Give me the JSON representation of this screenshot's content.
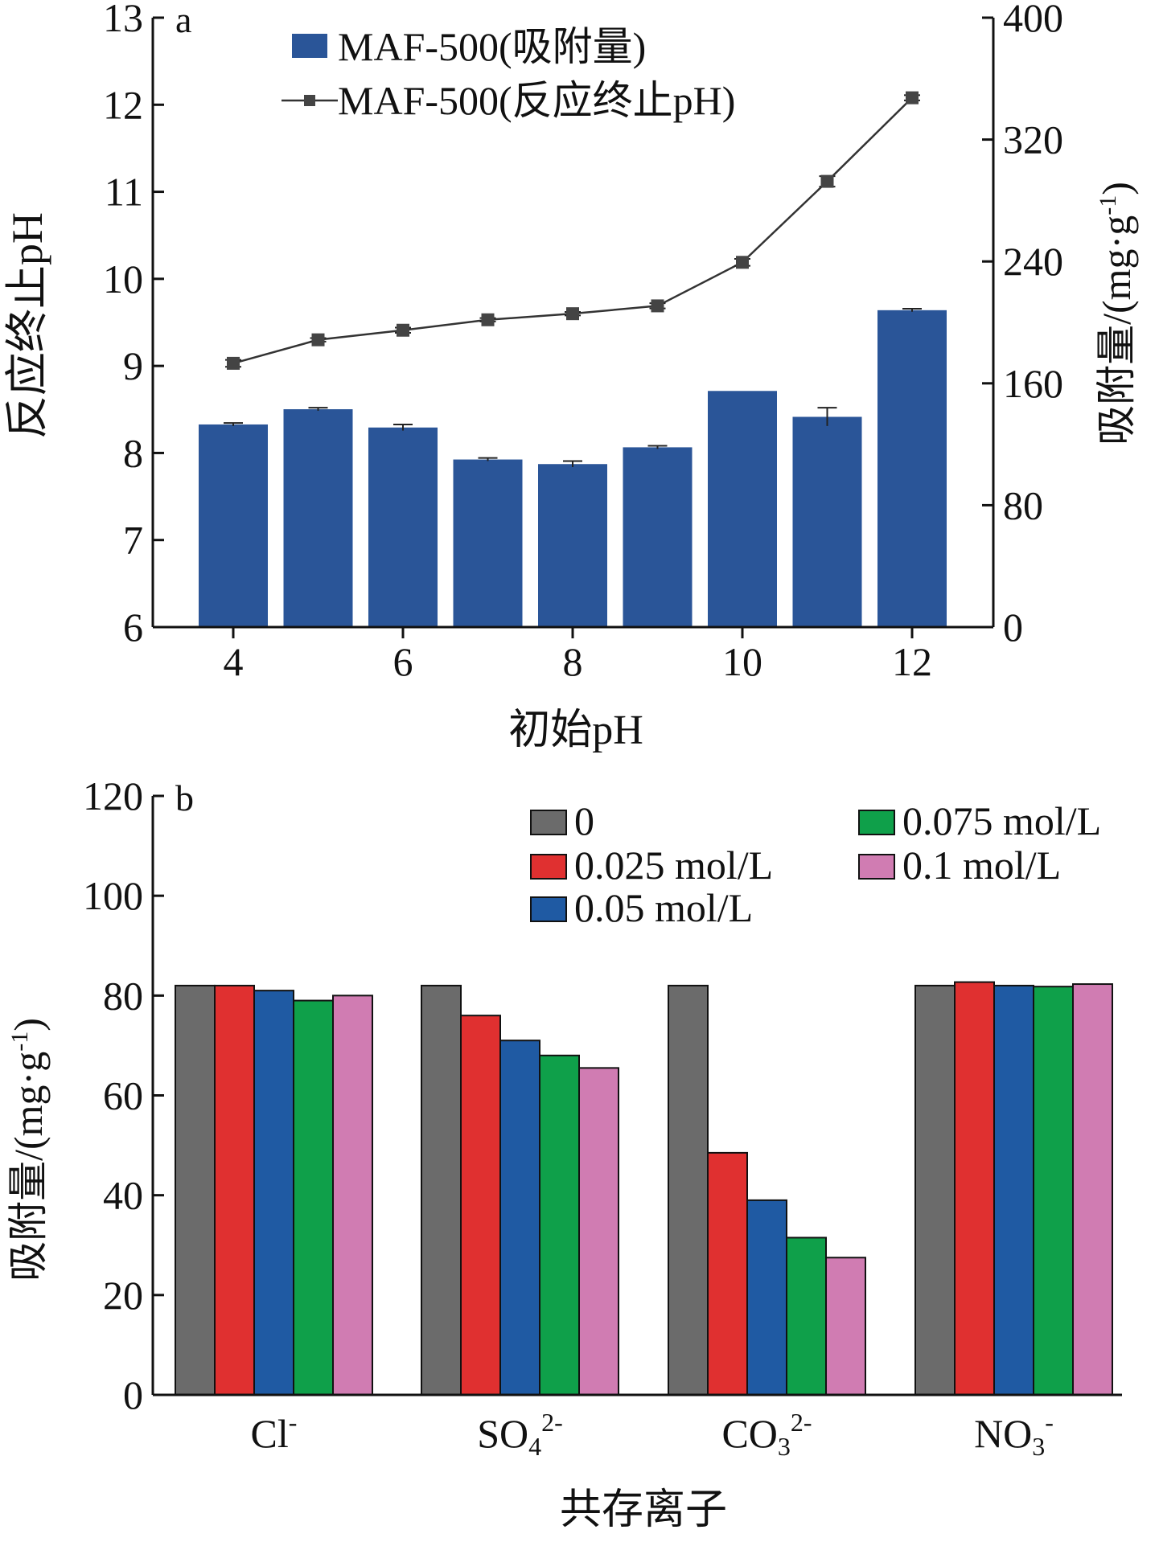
{
  "chart_data": [
    {
      "panel_label": "a",
      "type": "bar",
      "xlabel": "初始pH",
      "ylabel": "反应终止pH",
      "ylabel_right": "吸附量/(mg·g",
      "ylabel_right_sup": "-1",
      "ylabel_right_close": ")",
      "x": [
        4,
        5,
        6,
        7,
        8,
        9,
        10,
        11,
        12
      ],
      "xticks": [
        "4",
        "6",
        "8",
        "10",
        "12"
      ],
      "xtick_values": [
        4,
        6,
        8,
        10,
        12
      ],
      "ylim": [
        6,
        13
      ],
      "yticks": [
        "6",
        "7",
        "8",
        "9",
        "10",
        "11",
        "12",
        "13"
      ],
      "ylim_right": [
        0,
        400
      ],
      "yticks_right": [
        "0",
        "80",
        "160",
        "240",
        "320",
        "400"
      ],
      "bar_series": {
        "name": "MAF-500(吸附量)",
        "axis": "right",
        "color": "#2a5598",
        "values": [
          133,
          143,
          131,
          110,
          107,
          118,
          155,
          138,
          208
        ],
        "errors": [
          1,
          1,
          2,
          1,
          2,
          1,
          0,
          6,
          1
        ]
      },
      "line_series": {
        "name": "MAF-500(反应终止pH)",
        "axis": "left",
        "color": "#333333",
        "values": [
          9.03,
          9.3,
          9.41,
          9.53,
          9.6,
          9.69,
          10.19,
          11.12,
          12.08
        ],
        "errors": [
          0.04,
          0.02,
          0.03,
          0.02,
          0.02,
          0.03,
          0.04,
          0.06,
          0.03
        ]
      },
      "grid": false,
      "legend_position": "top-center"
    },
    {
      "panel_label": "b",
      "type": "bar",
      "xlabel": "共存离子",
      "ylabel": "吸附量/(mg·g",
      "ylabel_sup": "-1",
      "ylabel_close": ")",
      "categories": [
        {
          "base": "Cl",
          "sub": "",
          "sup": "-"
        },
        {
          "base": "SO",
          "sub": "4",
          "sup": "2-"
        },
        {
          "base": "CO",
          "sub": "3",
          "sup": "2-"
        },
        {
          "base": "NO",
          "sub": "3",
          "sup": "-"
        }
      ],
      "ylim": [
        0,
        120
      ],
      "yticks": [
        "0",
        "20",
        "40",
        "60",
        "80",
        "100",
        "120"
      ],
      "series": [
        {
          "name": "0",
          "color": "#6b6b6b",
          "values": [
            82,
            82,
            82,
            82
          ]
        },
        {
          "name": "0.025 mol/L",
          "color": "#e03030",
          "values": [
            82,
            76,
            48.5,
            82.7
          ]
        },
        {
          "name": "0.05 mol/L",
          "color": "#1f5aa3",
          "values": [
            81,
            71,
            39,
            82
          ]
        },
        {
          "name": "0.075 mol/L",
          "color": "#0fa04a",
          "values": [
            79,
            68,
            31.5,
            81.8
          ]
        },
        {
          "name": "0.1 mol/L",
          "color": "#d07cb2",
          "values": [
            80,
            65.5,
            27.5,
            82.3
          ]
        }
      ],
      "grid": false,
      "legend_position": "top-right"
    }
  ]
}
